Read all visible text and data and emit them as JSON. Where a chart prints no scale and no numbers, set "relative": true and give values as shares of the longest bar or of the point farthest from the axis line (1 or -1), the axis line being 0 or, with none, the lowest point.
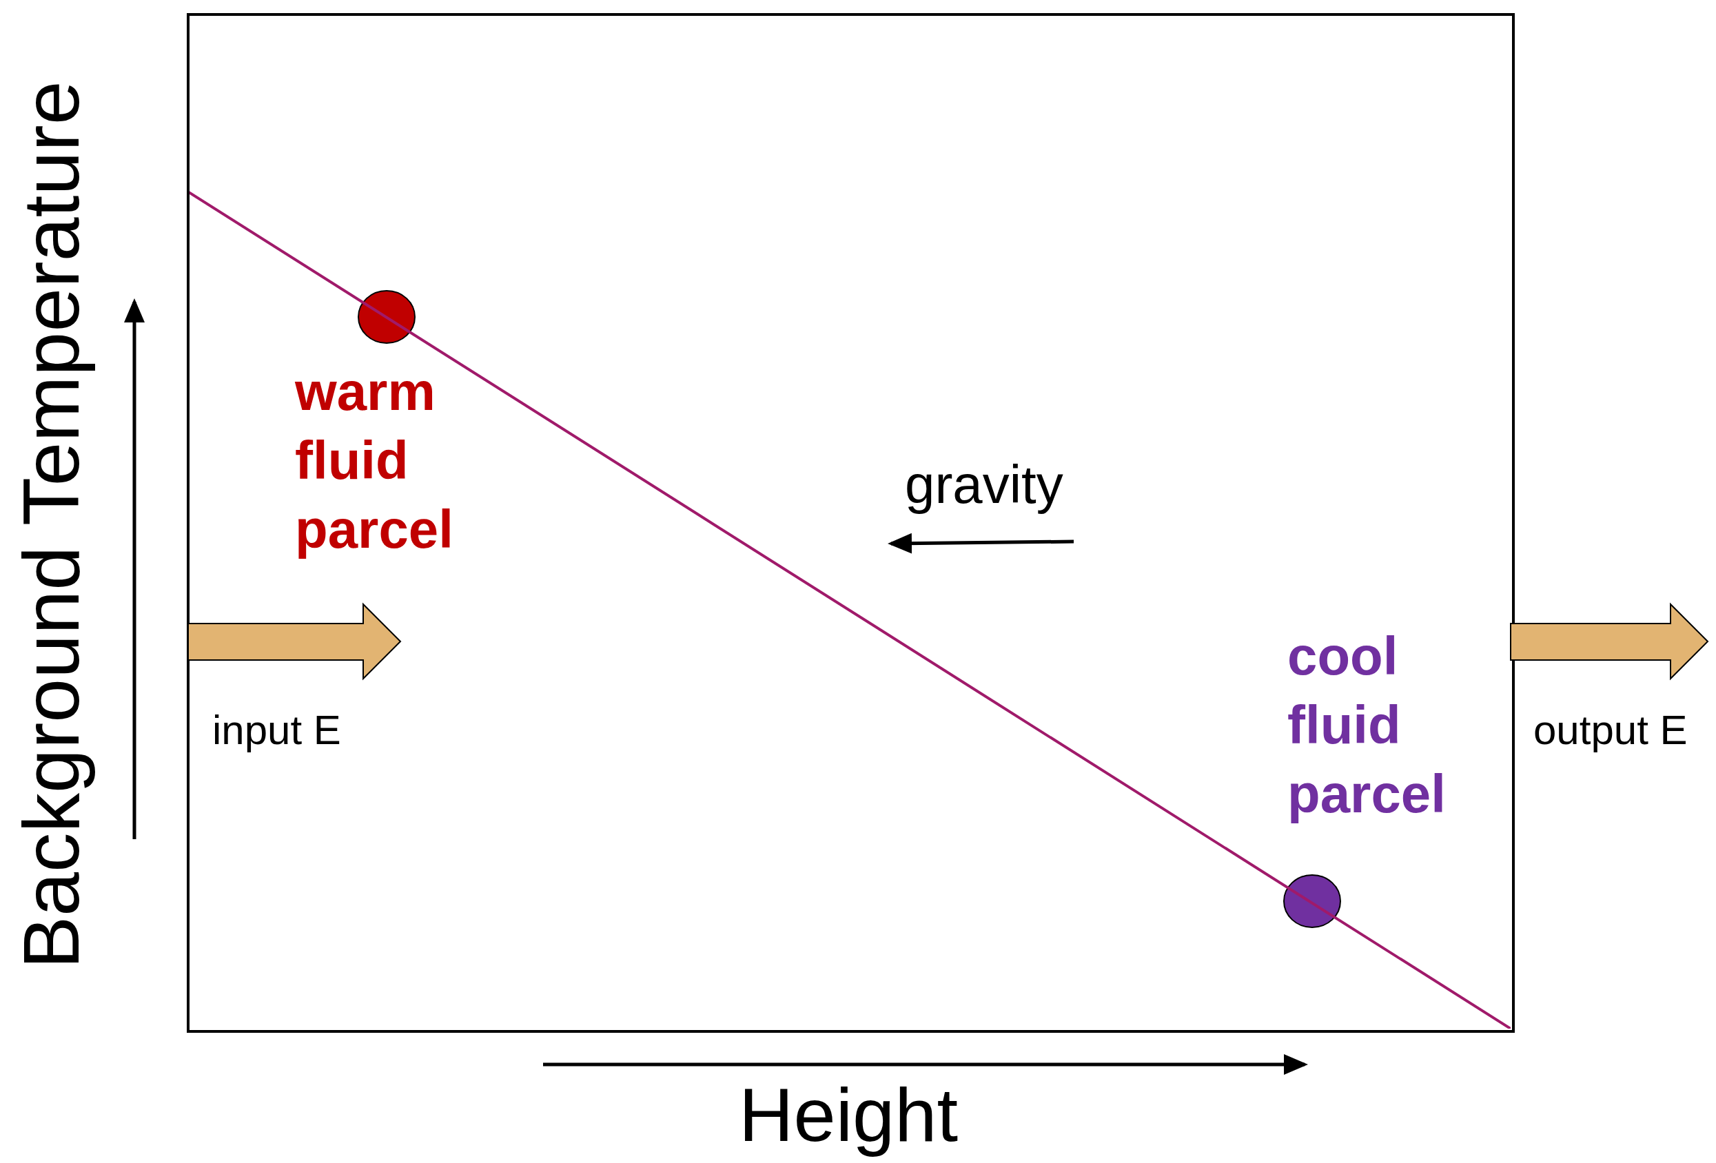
{
  "chart_data": {
    "type": "line",
    "relative": true,
    "xlabel": "Height",
    "ylabel": "Background Temperature",
    "categories": [
      null,
      null
    ],
    "series": [
      {
        "color": "#a01a6a",
        "values": [
          1,
          0
        ]
      }
    ],
    "annotations": [
      "warm fluid parcel",
      "cool fluid parcel",
      "gravity",
      "input E",
      "output E"
    ],
    "legend": false,
    "grid": false,
    "marker": "none"
  }
}
